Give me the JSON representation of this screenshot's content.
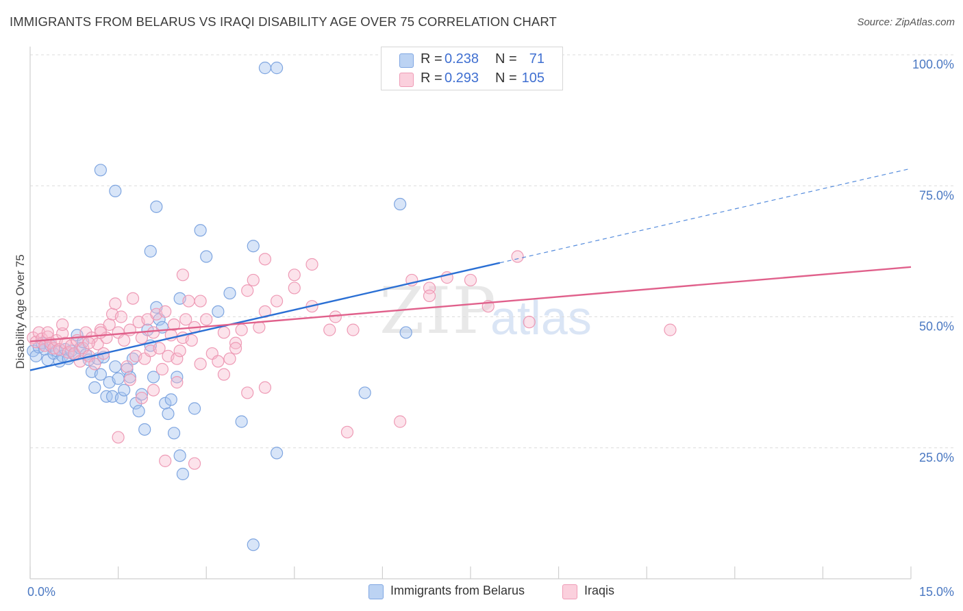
{
  "header": {
    "title": "IMMIGRANTS FROM BELARUS VS IRAQI DISABILITY AGE OVER 75 CORRELATION CHART",
    "source": "Source: ZipAtlas.com"
  },
  "watermark": {
    "zip": "ZIP",
    "atlas": "atlas"
  },
  "legend": {
    "rows": [
      {
        "r_label": "R =",
        "r_value": "0.238",
        "n_label": "N =",
        "n_value": "71",
        "color": "#a8c6f0"
      },
      {
        "r_label": "R =",
        "r_value": "0.293",
        "n_label": "N =",
        "n_value": "105",
        "color": "#f7b9cc"
      }
    ]
  },
  "bottom_legend": {
    "items": [
      {
        "label": "Immigrants from Belarus",
        "color": "#a8c6f0"
      },
      {
        "label": "Iraqis",
        "color": "#f7b9cc"
      }
    ]
  },
  "chart_data": {
    "type": "scatter",
    "title": "IMMIGRANTS FROM BELARUS VS IRAQI DISABILITY AGE OVER 75 CORRELATION CHART",
    "xlabel": "",
    "ylabel": "Disability Age Over 75",
    "xlim": [
      0,
      15
    ],
    "ylim": [
      0,
      100
    ],
    "x_ticks": [
      "0.0%",
      "15.0%"
    ],
    "y_ticks": [
      {
        "value": 25,
        "label": "25.0%"
      },
      {
        "value": 50,
        "label": "50.0%"
      },
      {
        "value": 75,
        "label": "75.0%"
      },
      {
        "value": 100,
        "label": "100.0%"
      }
    ],
    "grid": "horizontal dashed",
    "legend_position": "top-center",
    "series": [
      {
        "name": "Immigrants from Belarus",
        "color": "#6f9de0",
        "trend": {
          "x0": 0.0,
          "y0": 39.8,
          "x1": 8.0,
          "y1": 60.3,
          "dashed_to": [
            15.0,
            78.3
          ],
          "color": "#2a6fd4"
        },
        "points": [
          [
            0.05,
            43.5
          ],
          [
            0.1,
            42.5
          ],
          [
            0.15,
            44.2
          ],
          [
            0.2,
            45.0
          ],
          [
            0.25,
            43.8
          ],
          [
            0.3,
            41.8
          ],
          [
            0.35,
            44.5
          ],
          [
            0.4,
            43.0
          ],
          [
            0.45,
            43.5
          ],
          [
            0.5,
            41.5
          ],
          [
            0.55,
            42.5
          ],
          [
            0.6,
            43.8
          ],
          [
            0.65,
            42.0
          ],
          [
            0.7,
            43.5
          ],
          [
            0.75,
            42.8
          ],
          [
            0.8,
            46.5
          ],
          [
            0.85,
            44.0
          ],
          [
            0.9,
            45.2
          ],
          [
            0.95,
            42.8
          ],
          [
            1.0,
            41.8
          ],
          [
            1.05,
            39.5
          ],
          [
            1.1,
            36.5
          ],
          [
            1.15,
            42.0
          ],
          [
            1.2,
            39.0
          ],
          [
            1.25,
            42.3
          ],
          [
            1.3,
            34.8
          ],
          [
            1.35,
            37.5
          ],
          [
            1.4,
            34.8
          ],
          [
            1.45,
            40.5
          ],
          [
            1.5,
            38.2
          ],
          [
            1.55,
            34.5
          ],
          [
            1.6,
            36.0
          ],
          [
            1.65,
            40.0
          ],
          [
            1.7,
            38.5
          ],
          [
            1.75,
            42.0
          ],
          [
            1.8,
            33.5
          ],
          [
            1.85,
            32.0
          ],
          [
            1.9,
            35.2
          ],
          [
            1.95,
            28.5
          ],
          [
            2.0,
            47.5
          ],
          [
            2.05,
            44.5
          ],
          [
            2.1,
            38.5
          ],
          [
            2.15,
            51.8
          ],
          [
            2.2,
            49.5
          ],
          [
            2.25,
            48.0
          ],
          [
            2.3,
            33.5
          ],
          [
            2.35,
            31.5
          ],
          [
            2.4,
            34.2
          ],
          [
            2.45,
            27.8
          ],
          [
            2.5,
            38.5
          ],
          [
            2.55,
            23.5
          ],
          [
            2.6,
            20.0
          ],
          [
            1.2,
            78.0
          ],
          [
            1.45,
            74.0
          ],
          [
            2.15,
            71.0
          ],
          [
            2.05,
            62.5
          ],
          [
            2.55,
            53.5
          ],
          [
            2.9,
            66.5
          ],
          [
            3.0,
            61.5
          ],
          [
            3.2,
            51.0
          ],
          [
            3.4,
            54.5
          ],
          [
            3.8,
            63.5
          ],
          [
            3.6,
            30.0
          ],
          [
            4.0,
            97.5
          ],
          [
            4.2,
            97.5
          ],
          [
            3.8,
            6.5
          ],
          [
            4.2,
            24.0
          ],
          [
            2.8,
            32.5
          ],
          [
            5.7,
            35.5
          ],
          [
            6.4,
            47.0
          ],
          [
            6.3,
            71.5
          ]
        ]
      },
      {
        "name": "Iraqis",
        "color": "#ef8fae",
        "trend": {
          "x0": 0.0,
          "y0": 45.3,
          "x1": 15.0,
          "y1": 59.5,
          "color": "#e0608b"
        },
        "points": [
          [
            0.05,
            46.0
          ],
          [
            0.1,
            45.2
          ],
          [
            0.15,
            47.0
          ],
          [
            0.2,
            45.8
          ],
          [
            0.25,
            44.5
          ],
          [
            0.3,
            46.2
          ],
          [
            0.35,
            45.0
          ],
          [
            0.4,
            44.0
          ],
          [
            0.45,
            45.5
          ],
          [
            0.5,
            43.8
          ],
          [
            0.55,
            46.8
          ],
          [
            0.6,
            45.0
          ],
          [
            0.65,
            43.2
          ],
          [
            0.7,
            44.5
          ],
          [
            0.75,
            43.0
          ],
          [
            0.8,
            45.5
          ],
          [
            0.85,
            41.5
          ],
          [
            0.9,
            44.0
          ],
          [
            0.95,
            47.0
          ],
          [
            1.0,
            42.5
          ],
          [
            1.05,
            46.0
          ],
          [
            1.1,
            41.0
          ],
          [
            1.15,
            44.8
          ],
          [
            1.2,
            47.5
          ],
          [
            1.25,
            43.0
          ],
          [
            1.3,
            46.0
          ],
          [
            1.35,
            48.5
          ],
          [
            1.4,
            50.5
          ],
          [
            1.45,
            52.5
          ],
          [
            1.5,
            47.0
          ],
          [
            1.55,
            50.0
          ],
          [
            1.6,
            45.5
          ],
          [
            1.65,
            40.5
          ],
          [
            1.7,
            47.5
          ],
          [
            1.75,
            53.5
          ],
          [
            1.8,
            42.5
          ],
          [
            1.85,
            49.0
          ],
          [
            1.9,
            46.0
          ],
          [
            1.95,
            42.0
          ],
          [
            2.0,
            49.5
          ],
          [
            2.05,
            43.5
          ],
          [
            2.1,
            47.0
          ],
          [
            2.15,
            50.5
          ],
          [
            2.2,
            44.0
          ],
          [
            2.25,
            40.0
          ],
          [
            2.3,
            51.0
          ],
          [
            2.35,
            42.5
          ],
          [
            2.4,
            46.5
          ],
          [
            2.45,
            48.5
          ],
          [
            2.5,
            42.0
          ],
          [
            2.55,
            43.5
          ],
          [
            2.6,
            46.0
          ],
          [
            2.65,
            49.5
          ],
          [
            2.7,
            53.0
          ],
          [
            2.75,
            45.5
          ],
          [
            2.8,
            48.0
          ],
          [
            2.9,
            41.0
          ],
          [
            3.0,
            49.5
          ],
          [
            3.1,
            43.0
          ],
          [
            3.2,
            41.5
          ],
          [
            3.3,
            47.0
          ],
          [
            3.4,
            42.0
          ],
          [
            3.5,
            45.0
          ],
          [
            3.6,
            47.5
          ],
          [
            3.7,
            55.0
          ],
          [
            3.8,
            57.0
          ],
          [
            4.0,
            51.0
          ],
          [
            4.2,
            53.0
          ],
          [
            4.5,
            55.5
          ],
          [
            4.8,
            52.0
          ],
          [
            5.1,
            47.5
          ],
          [
            5.5,
            47.5
          ],
          [
            1.5,
            27.0
          ],
          [
            1.7,
            38.0
          ],
          [
            1.9,
            34.5
          ],
          [
            2.1,
            36.0
          ],
          [
            2.3,
            22.5
          ],
          [
            2.5,
            37.5
          ],
          [
            2.6,
            58.0
          ],
          [
            2.8,
            22.0
          ],
          [
            3.3,
            39.0
          ],
          [
            3.7,
            35.5
          ],
          [
            4.0,
            36.5
          ],
          [
            4.5,
            58.0
          ],
          [
            4.8,
            60.0
          ],
          [
            5.4,
            28.0
          ],
          [
            6.3,
            30.0
          ],
          [
            6.5,
            57.0
          ],
          [
            6.8,
            55.5
          ],
          [
            7.1,
            57.5
          ],
          [
            7.5,
            57.0
          ],
          [
            7.8,
            52.0
          ],
          [
            8.3,
            61.5
          ],
          [
            8.5,
            49.0
          ],
          [
            10.9,
            47.5
          ],
          [
            4.0,
            61.0
          ],
          [
            2.9,
            53.0
          ],
          [
            3.5,
            44.0
          ],
          [
            6.8,
            54.0
          ],
          [
            1.2,
            47.0
          ],
          [
            0.55,
            48.5
          ],
          [
            0.3,
            47.0
          ],
          [
            1.0,
            45.0
          ],
          [
            3.9,
            48.0
          ],
          [
            5.2,
            50.0
          ]
        ]
      }
    ]
  }
}
